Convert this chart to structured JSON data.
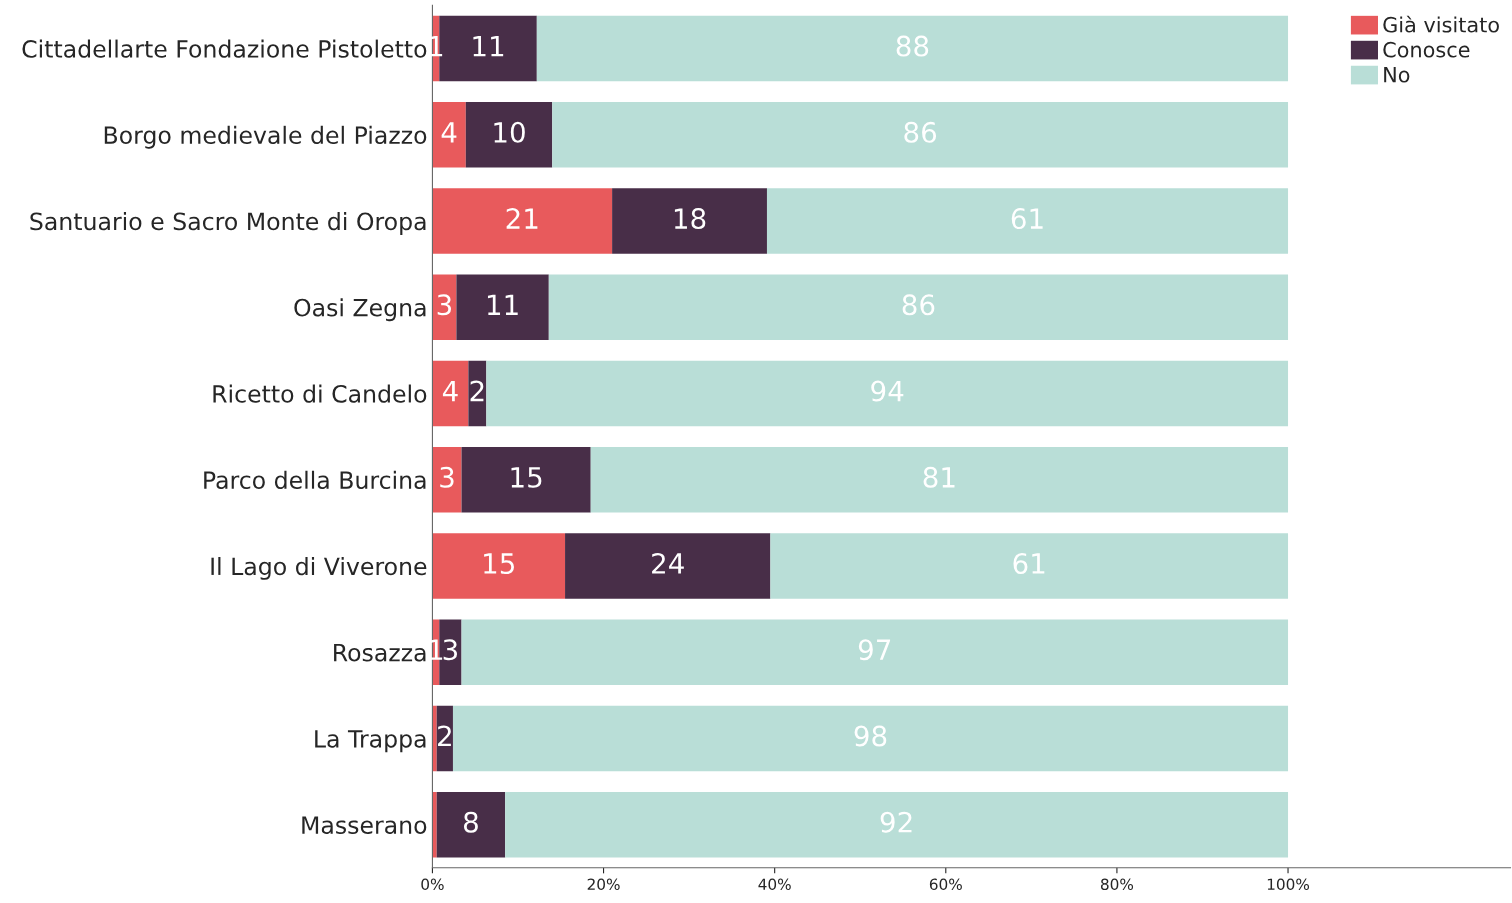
{
  "chart_data": {
    "type": "bar",
    "orientation": "horizontal",
    "stacked": true,
    "categories": [
      "Cittadellarte Fondazione Pistoletto",
      "Borgo medievale del Piazzo",
      "Santuario e Sacro Monte di Oropa",
      "Oasi Zegna",
      "Ricetto di Candelo",
      "Parco della Burcina",
      "Il Lago di Viverone",
      "Rosazza",
      "La Trappa",
      "Masserano"
    ],
    "series": [
      {
        "name": "Già visitato",
        "color": "#e85a5c",
        "values": [
          0.8,
          3.9,
          21.0,
          2.8,
          4.2,
          3.4,
          15.5,
          0.8,
          0.5,
          0.5
        ],
        "value_labels": [
          "1",
          "4",
          "21",
          "3",
          "4",
          "3",
          "15",
          "1",
          null,
          null
        ]
      },
      {
        "name": "Conosce",
        "color": "#482e48",
        "values": [
          11.4,
          10.1,
          18.1,
          10.8,
          2.1,
          15.1,
          24.0,
          2.6,
          1.9,
          8.0
        ],
        "value_labels": [
          "11",
          "10",
          "18",
          "11",
          "2",
          "15",
          "24",
          "3",
          "2",
          "8"
        ]
      },
      {
        "name": "No",
        "color": "#b9ded7",
        "values": [
          87.8,
          86.0,
          60.9,
          86.4,
          93.7,
          81.5,
          60.5,
          96.6,
          97.6,
          91.5
        ],
        "value_labels": [
          "88",
          "86",
          "61",
          "86",
          "94",
          "81",
          "61",
          "97",
          "98",
          "92"
        ]
      }
    ],
    "xlim": [
      0,
      126
    ],
    "xticks": [
      {
        "value": 0,
        "label": "0%"
      },
      {
        "value": 20,
        "label": "20%"
      },
      {
        "value": 40,
        "label": "40%"
      },
      {
        "value": 60,
        "label": "60%"
      },
      {
        "value": 80,
        "label": "80%"
      },
      {
        "value": 100,
        "label": "100%"
      }
    ],
    "grid": false,
    "legend": "top right"
  }
}
